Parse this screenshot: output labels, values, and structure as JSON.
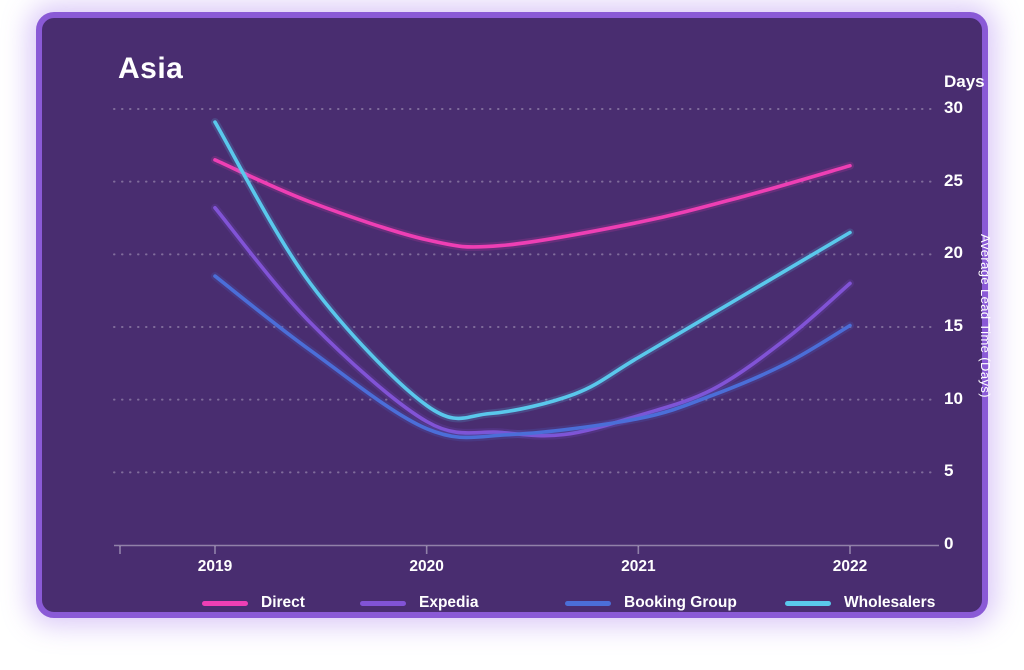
{
  "card": {
    "title": "Asia",
    "background": "#492d70",
    "border_color": "#8a5ad6",
    "text_color": "#ffffff"
  },
  "chart_data": {
    "type": "line",
    "title": "Asia",
    "y_axis_header": "Days",
    "ylabel": "Average Lead Time (Days)",
    "ylim": [
      0,
      30
    ],
    "y_ticks": [
      0,
      5,
      10,
      15,
      20,
      25,
      30
    ],
    "y_tick_labels": [
      "0",
      "5",
      "10",
      "15",
      "20",
      "25",
      "30"
    ],
    "x_values": [
      2019,
      2020,
      2021,
      2022
    ],
    "x_tick_labels": [
      "2019",
      "2020",
      "2021",
      "2022"
    ],
    "grid": "dotted-horizontal",
    "legend_position": "bottom",
    "gridline_color": "rgba(255,255,255,0.30)",
    "axis_color": "rgba(255,255,255,0.40)",
    "series": [
      {
        "name": "Direct",
        "color": "#ee3fb4",
        "values": [
          26.5,
          21.0,
          22.2,
          26.1
        ],
        "curve": [
          [
            2019,
            26.5
          ],
          [
            2019.45,
            23.6
          ],
          [
            2020,
            21.0
          ],
          [
            2020.35,
            20.6
          ],
          [
            2021,
            22.2
          ],
          [
            2021.5,
            24.0
          ],
          [
            2022,
            26.1
          ]
        ]
      },
      {
        "name": "Expedia",
        "color": "#8153d6",
        "values": [
          23.2,
          8.5,
          8.9,
          18.0
        ],
        "curve": [
          [
            2019,
            23.2
          ],
          [
            2019.45,
            15.3
          ],
          [
            2020,
            8.5
          ],
          [
            2020.35,
            7.75
          ],
          [
            2020.65,
            7.6
          ],
          [
            2021,
            8.9
          ],
          [
            2021.35,
            10.7
          ],
          [
            2021.7,
            14.2
          ],
          [
            2022,
            18.0
          ]
        ]
      },
      {
        "name": "Booking Group",
        "color": "#4b6ed8",
        "values": [
          18.5,
          8.0,
          8.7,
          15.1
        ],
        "curve": [
          [
            2019,
            18.5
          ],
          [
            2019.45,
            13.4
          ],
          [
            2020,
            8.0
          ],
          [
            2020.4,
            7.6
          ],
          [
            2021,
            8.7
          ],
          [
            2021.35,
            10.3
          ],
          [
            2021.7,
            12.5
          ],
          [
            2022,
            15.1
          ]
        ]
      },
      {
        "name": "Wholesalers",
        "color": "#5ac8ec",
        "values": [
          29.1,
          9.6,
          12.9,
          21.5
        ],
        "curve": [
          [
            2019,
            29.1
          ],
          [
            2019.45,
            18.0
          ],
          [
            2020,
            9.6
          ],
          [
            2020.3,
            9.05
          ],
          [
            2020.7,
            10.4
          ],
          [
            2021,
            12.9
          ],
          [
            2021.5,
            17.2
          ],
          [
            2022,
            21.5
          ]
        ]
      }
    ]
  },
  "legend": {
    "item_lefts": [
      160,
      318,
      523,
      743
    ]
  }
}
